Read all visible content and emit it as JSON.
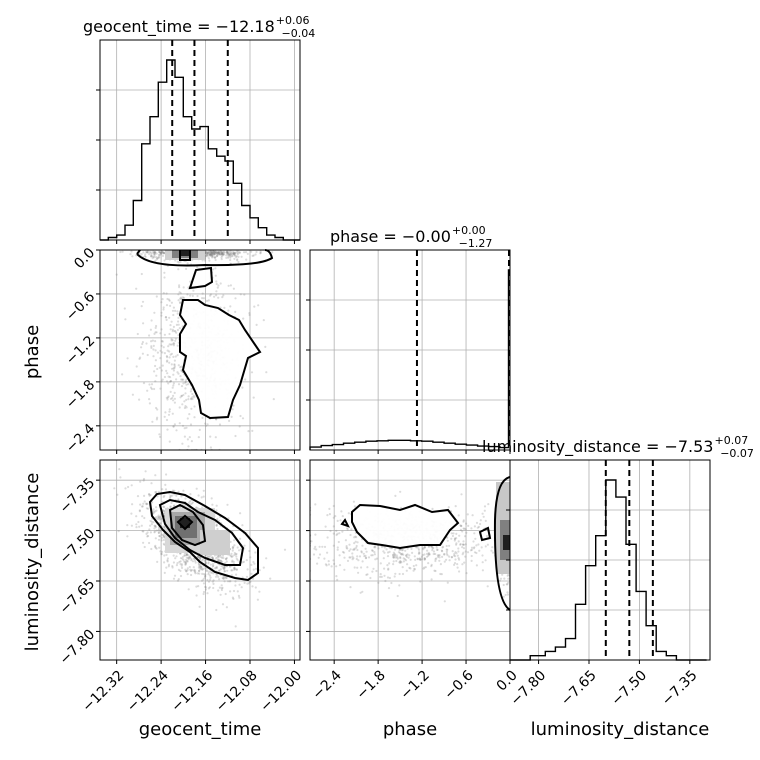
{
  "chart_data": {
    "type": "corner",
    "parameters": [
      "geocent_time",
      "phase",
      "luminosity_distance"
    ],
    "titles": [
      {
        "param": "geocent_time",
        "prefix": "geocent_time = ",
        "median": "−12.18",
        "plus": "+0.06",
        "minus": "−0.04"
      },
      {
        "param": "phase",
        "prefix": "phase = ",
        "median": "−0.00",
        "plus": "+0.00",
        "minus": "−1.27"
      },
      {
        "param": "luminosity_distance",
        "prefix": "luminosity_distance = ",
        "median": "−7.53",
        "plus": "+0.07",
        "minus": "−0.07"
      }
    ],
    "ranges": {
      "geocent_time": [
        -12.35,
        -11.99
      ],
      "phase": [
        -2.73,
        0.0
      ],
      "luminosity_distance": [
        -7.885,
        -7.29
      ]
    },
    "ticks": {
      "geocent_time": [
        "−12.32",
        "−12.24",
        "−12.16",
        "−12.08",
        "−12.00"
      ],
      "phase": [
        "−2.4",
        "−1.8",
        "−1.2",
        "−0.6",
        "0.0"
      ],
      "luminosity_distance": [
        "−7.80",
        "−7.65",
        "−7.50",
        "−7.35"
      ]
    },
    "tick_values": {
      "geocent_time": [
        -12.32,
        -12.24,
        -12.16,
        -12.08,
        -12.0
      ],
      "phase": [
        -2.4,
        -1.8,
        -1.2,
        -0.6,
        0.0
      ],
      "luminosity_distance": [
        -7.8,
        -7.65,
        -7.5,
        -7.35
      ]
    },
    "axis_labels": {
      "geocent_time": "geocent_time",
      "phase": "phase",
      "luminosity_distance": "luminosity_distance"
    },
    "histograms": {
      "geocent_time": {
        "edges": [
          -12.35,
          -12.335,
          -12.32,
          -12.305,
          -12.29,
          -12.275,
          -12.26,
          -12.245,
          -12.23,
          -12.215,
          -12.2,
          -12.185,
          -12.17,
          -12.155,
          -12.14,
          -12.125,
          -12.11,
          -12.095,
          -12.08,
          -12.065,
          -12.05,
          -12.035,
          -12.02,
          -12.005,
          -11.99
        ],
        "counts": [
          0,
          1,
          2,
          6,
          16,
          39,
          50,
          64,
          73,
          66,
          50,
          45,
          46,
          37,
          34,
          32,
          23,
          14,
          9,
          5,
          2,
          1,
          0,
          0
        ]
      },
      "phase": {
        "edges": [
          -2.73,
          -2.5775,
          -2.425,
          -2.2725,
          -2.12,
          -1.9675,
          -1.815,
          -1.6625,
          -1.51,
          -1.3575,
          -1.205,
          -1.0525,
          -0.9,
          -0.7475,
          -0.595,
          -0.4425,
          -0.29,
          -0.1375,
          -0.02,
          0.0
        ],
        "counts": [
          0.6,
          0.9,
          1.1,
          1.4,
          1.6,
          1.8,
          1.9,
          2.0,
          2.0,
          1.9,
          1.8,
          1.6,
          1.4,
          1.2,
          1.0,
          0.8,
          0.7,
          0.5,
          37.0
        ]
      },
      "luminosity_distance": {
        "edges": [
          -7.885,
          -7.87,
          -7.855,
          -7.84,
          -7.825,
          -7.81,
          -7.795,
          -7.78,
          -7.765,
          -7.75,
          -7.735,
          -7.72,
          -7.705,
          -7.69,
          -7.675,
          -7.66,
          -7.645,
          -7.63,
          -7.615,
          -7.6,
          -7.585,
          -7.57,
          -7.555,
          -7.54,
          -7.525,
          -7.51,
          -7.495,
          -7.48,
          -7.465,
          -7.45,
          -7.435,
          -7.42,
          -7.405,
          -7.39,
          -7.375,
          -7.36,
          -7.345,
          -7.33,
          -7.315,
          -7.3
        ],
        "counts": [
          0,
          0,
          0,
          0,
          1,
          1,
          1,
          2,
          2,
          3,
          3,
          5,
          5,
          13,
          13,
          22,
          22,
          29,
          29,
          42,
          42,
          38,
          38,
          27,
          27,
          16,
          16,
          8,
          8,
          2,
          2,
          1,
          1,
          0,
          0,
          0,
          0,
          0,
          0
        ]
      }
    },
    "quantiles": {
      "geocent_time": [
        -12.22,
        -12.18,
        -12.12
      ],
      "phase": [
        -1.27,
        0.0,
        0.0
      ],
      "luminosity_distance": [
        -7.6,
        -7.53,
        -7.46
      ]
    },
    "scatter_style": {
      "point_color": "#808080",
      "density_cmap": "greys",
      "contour_color": "#000000"
    }
  }
}
